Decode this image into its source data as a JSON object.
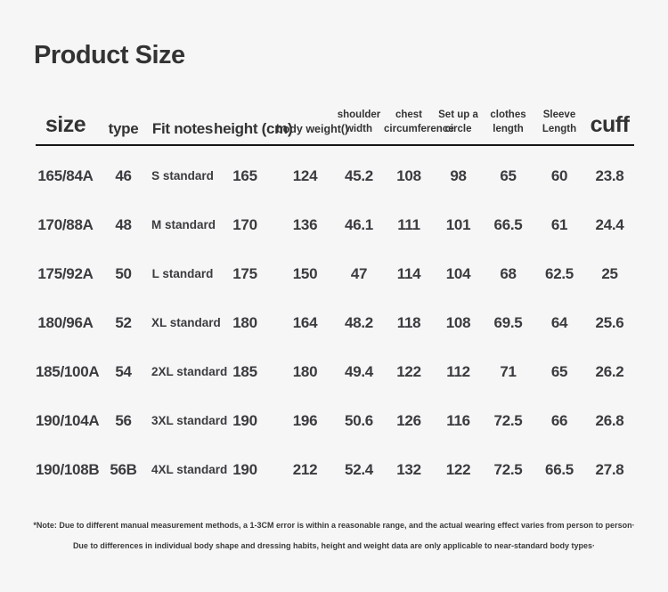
{
  "page": {
    "background_color": "#f6f6f6",
    "text_color": "#333333",
    "divider_color": "#161616"
  },
  "chart_data": {
    "type": "table",
    "title": "Product Size",
    "columns": [
      {
        "key": "size",
        "label": "size",
        "display": "size",
        "style": "xl"
      },
      {
        "key": "type",
        "label": "type",
        "display": "type",
        "style": "md"
      },
      {
        "key": "fit-notes",
        "label": "Fit notes",
        "display": "Fit notes",
        "style": "md"
      },
      {
        "key": "height",
        "label": "height (cm)",
        "display": "height (cm)",
        "style": "md"
      },
      {
        "key": "body-weight",
        "label": "body weight()",
        "display": "body weight()",
        "style": "sm"
      },
      {
        "key": "shoulder-width",
        "label": "shoulder width",
        "display": "shoulder\nwidth",
        "style": "xs"
      },
      {
        "key": "chest-circumference",
        "label": "chest circumference",
        "display": "chest\ncircumference",
        "style": "xs"
      },
      {
        "key": "set-up-a-circle",
        "label": "Set up a circle",
        "display": "Set up a\ncircle",
        "style": "xs"
      },
      {
        "key": "clothes-length",
        "label": "clothes length",
        "display": "clothes\nlength",
        "style": "xs"
      },
      {
        "key": "sleeve-length",
        "label": "Sleeve Length",
        "display": "Sleeve\nLength",
        "style": "xs"
      },
      {
        "key": "cuff",
        "label": "cuff",
        "display": "cuff",
        "style": "xl"
      }
    ],
    "rows": [
      [
        "165/84A",
        "46",
        "S standard",
        "165",
        "124",
        "45.2",
        "108",
        "98",
        "65",
        "60",
        "23.8"
      ],
      [
        "170/88A",
        "48",
        "M standard",
        "170",
        "136",
        "46.1",
        "111",
        "101",
        "66.5",
        "61",
        "24.4"
      ],
      [
        "175/92A",
        "50",
        "L standard",
        "175",
        "150",
        "47",
        "114",
        "104",
        "68",
        "62.5",
        "25"
      ],
      [
        "180/96A",
        "52",
        "XL standard",
        "180",
        "164",
        "48.2",
        "118",
        "108",
        "69.5",
        "64",
        "25.6"
      ],
      [
        "185/100A",
        "54",
        "2XL standard",
        "185",
        "180",
        "49.4",
        "122",
        "112",
        "71",
        "65",
        "26.2"
      ],
      [
        "190/104A",
        "56",
        "3XL standard",
        "190",
        "196",
        "50.6",
        "126",
        "116",
        "72.5",
        "66",
        "26.8"
      ],
      [
        "190/108B",
        "56B",
        "4XL standard",
        "190",
        "212",
        "52.4",
        "132",
        "122",
        "72.5",
        "66.5",
        "27.8"
      ]
    ],
    "notes": [
      "*Note: Due to different manual measurement methods, a 1-3CM error is within a reasonable range, and the actual wearing effect varies from person to person·",
      "Due to differences in individual body shape and dressing habits, height and weight data are only applicable to near-standard body types·"
    ]
  }
}
